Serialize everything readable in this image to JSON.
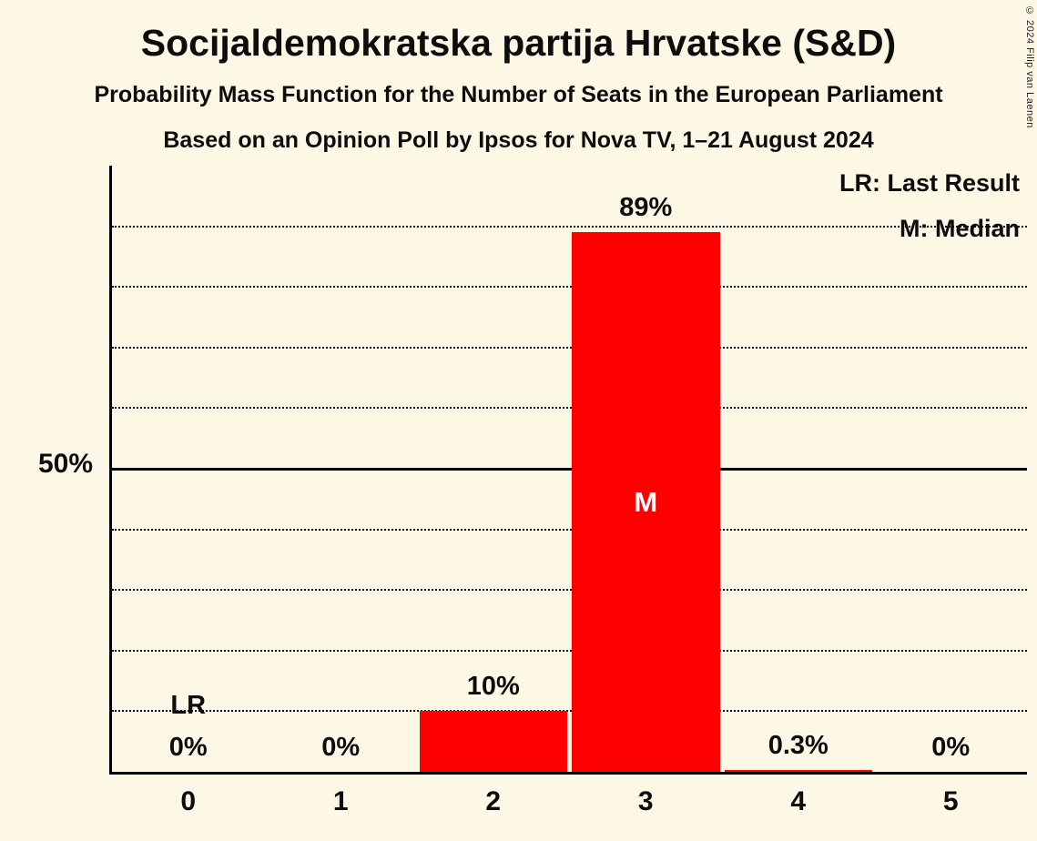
{
  "title": "Socijaldemokratska partija Hrvatske (S&D)",
  "subtitle": "Probability Mass Function for the Number of Seats in the European Parliament",
  "subsubtitle": "Based on an Opinion Poll by Ipsos for Nova TV, 1–21 August 2024",
  "copyright": "© 2024 Filip van Laenen",
  "legend": {
    "last_result": "LR: Last Result",
    "median": "M: Median"
  },
  "chart_data": {
    "type": "bar",
    "title": "Socijaldemokratska partija Hrvatske (S&D)",
    "subtitle": "Probability Mass Function for the Number of Seats in the European Parliament",
    "categories": [
      "0",
      "1",
      "2",
      "3",
      "4",
      "5"
    ],
    "values": [
      0,
      0,
      10,
      89,
      0.3,
      0
    ],
    "value_labels": [
      "0%",
      "0%",
      "10%",
      "89%",
      "0.3%",
      "0%"
    ],
    "xlabel": "",
    "ylabel": "",
    "ylim": [
      0,
      100
    ],
    "gridlines": [
      10,
      20,
      30,
      40,
      60,
      70,
      80,
      90
    ],
    "solid_gridline": 50,
    "y_tick": {
      "value": 50,
      "label": "50%"
    },
    "median": {
      "category": "3",
      "marker": "M"
    },
    "last_result": {
      "category": "0",
      "marker": "LR"
    },
    "legend_position": "top-right",
    "grid": "dotted-horizontal",
    "bar_color": "#ff0000",
    "background_color": "#fdf8e6",
    "text_color": "#0d0d0d"
  }
}
